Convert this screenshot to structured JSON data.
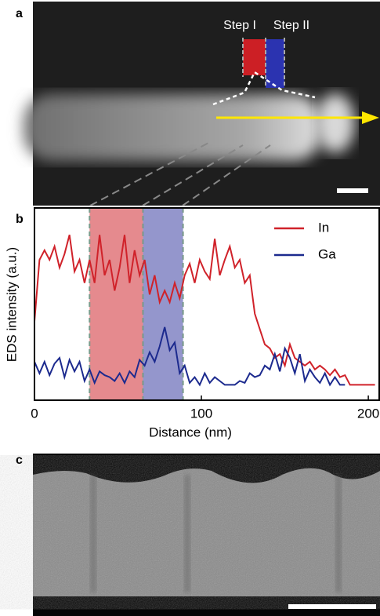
{
  "panel_a": {
    "label": "a",
    "step_labels": [
      "Step I",
      "Step II"
    ]
  },
  "chart_data": {
    "type": "line",
    "label": "b",
    "x_label": "Distance (nm)",
    "y_label": "EDS intensity (a.u.)",
    "x": [
      0,
      3,
      6,
      9,
      12,
      15,
      18,
      21,
      24,
      27,
      30,
      33,
      36,
      39,
      42,
      45,
      48,
      51,
      54,
      57,
      60,
      63,
      66,
      69,
      72,
      75,
      78,
      81,
      84,
      87,
      90,
      93,
      96,
      99,
      102,
      105,
      108,
      111,
      114,
      117,
      120,
      123,
      126,
      129,
      132,
      135,
      138,
      141,
      144,
      147,
      150,
      153,
      156,
      159,
      162,
      165,
      168,
      171,
      174,
      177,
      180,
      183,
      186,
      189,
      192,
      195,
      198,
      201,
      204
    ],
    "series": [
      {
        "name": "In",
        "color": "#d0222a",
        "values": [
          41,
          73,
          78,
          73,
          80,
          69,
          76,
          86,
          67,
          73,
          61,
          73,
          61,
          86,
          65,
          73,
          57,
          69,
          86,
          61,
          78,
          65,
          73,
          55,
          65,
          51,
          57,
          51,
          61,
          53,
          65,
          71,
          61,
          73,
          67,
          63,
          84,
          65,
          73,
          80,
          69,
          73,
          61,
          65,
          45,
          37,
          29,
          27,
          22,
          24,
          18,
          29,
          22,
          20,
          18,
          20,
          16,
          18,
          16,
          13,
          16,
          12,
          13,
          8,
          8,
          8,
          8,
          8,
          8
        ]
      },
      {
        "name": "Ga",
        "color": "#1c2a8e",
        "values": [
          20,
          14,
          20,
          13,
          19,
          22,
          12,
          21,
          15,
          20,
          10,
          16,
          9,
          15,
          13,
          12,
          10,
          14,
          9,
          15,
          12,
          21,
          18,
          25,
          20,
          28,
          38,
          26,
          30,
          14,
          18,
          9,
          12,
          8,
          14,
          9,
          12,
          10,
          8,
          8,
          8,
          10,
          9,
          14,
          12,
          13,
          18,
          16,
          24,
          15,
          27,
          22,
          14,
          24,
          10,
          16,
          12,
          9,
          14,
          8,
          12,
          8,
          8,
          null,
          null,
          null,
          null,
          null,
          null
        ]
      }
    ],
    "regions": [
      {
        "x": [
          33,
          65
        ],
        "color": "#e58a8e"
      },
      {
        "x": [
          65,
          89
        ],
        "color": "#9496cc"
      }
    ],
    "xlim": [
      0,
      207
    ],
    "xticks": [
      0,
      100,
      200
    ],
    "ylim": [
      0,
      100
    ],
    "legend": "upper right"
  },
  "panel_c": {
    "label": "c"
  }
}
